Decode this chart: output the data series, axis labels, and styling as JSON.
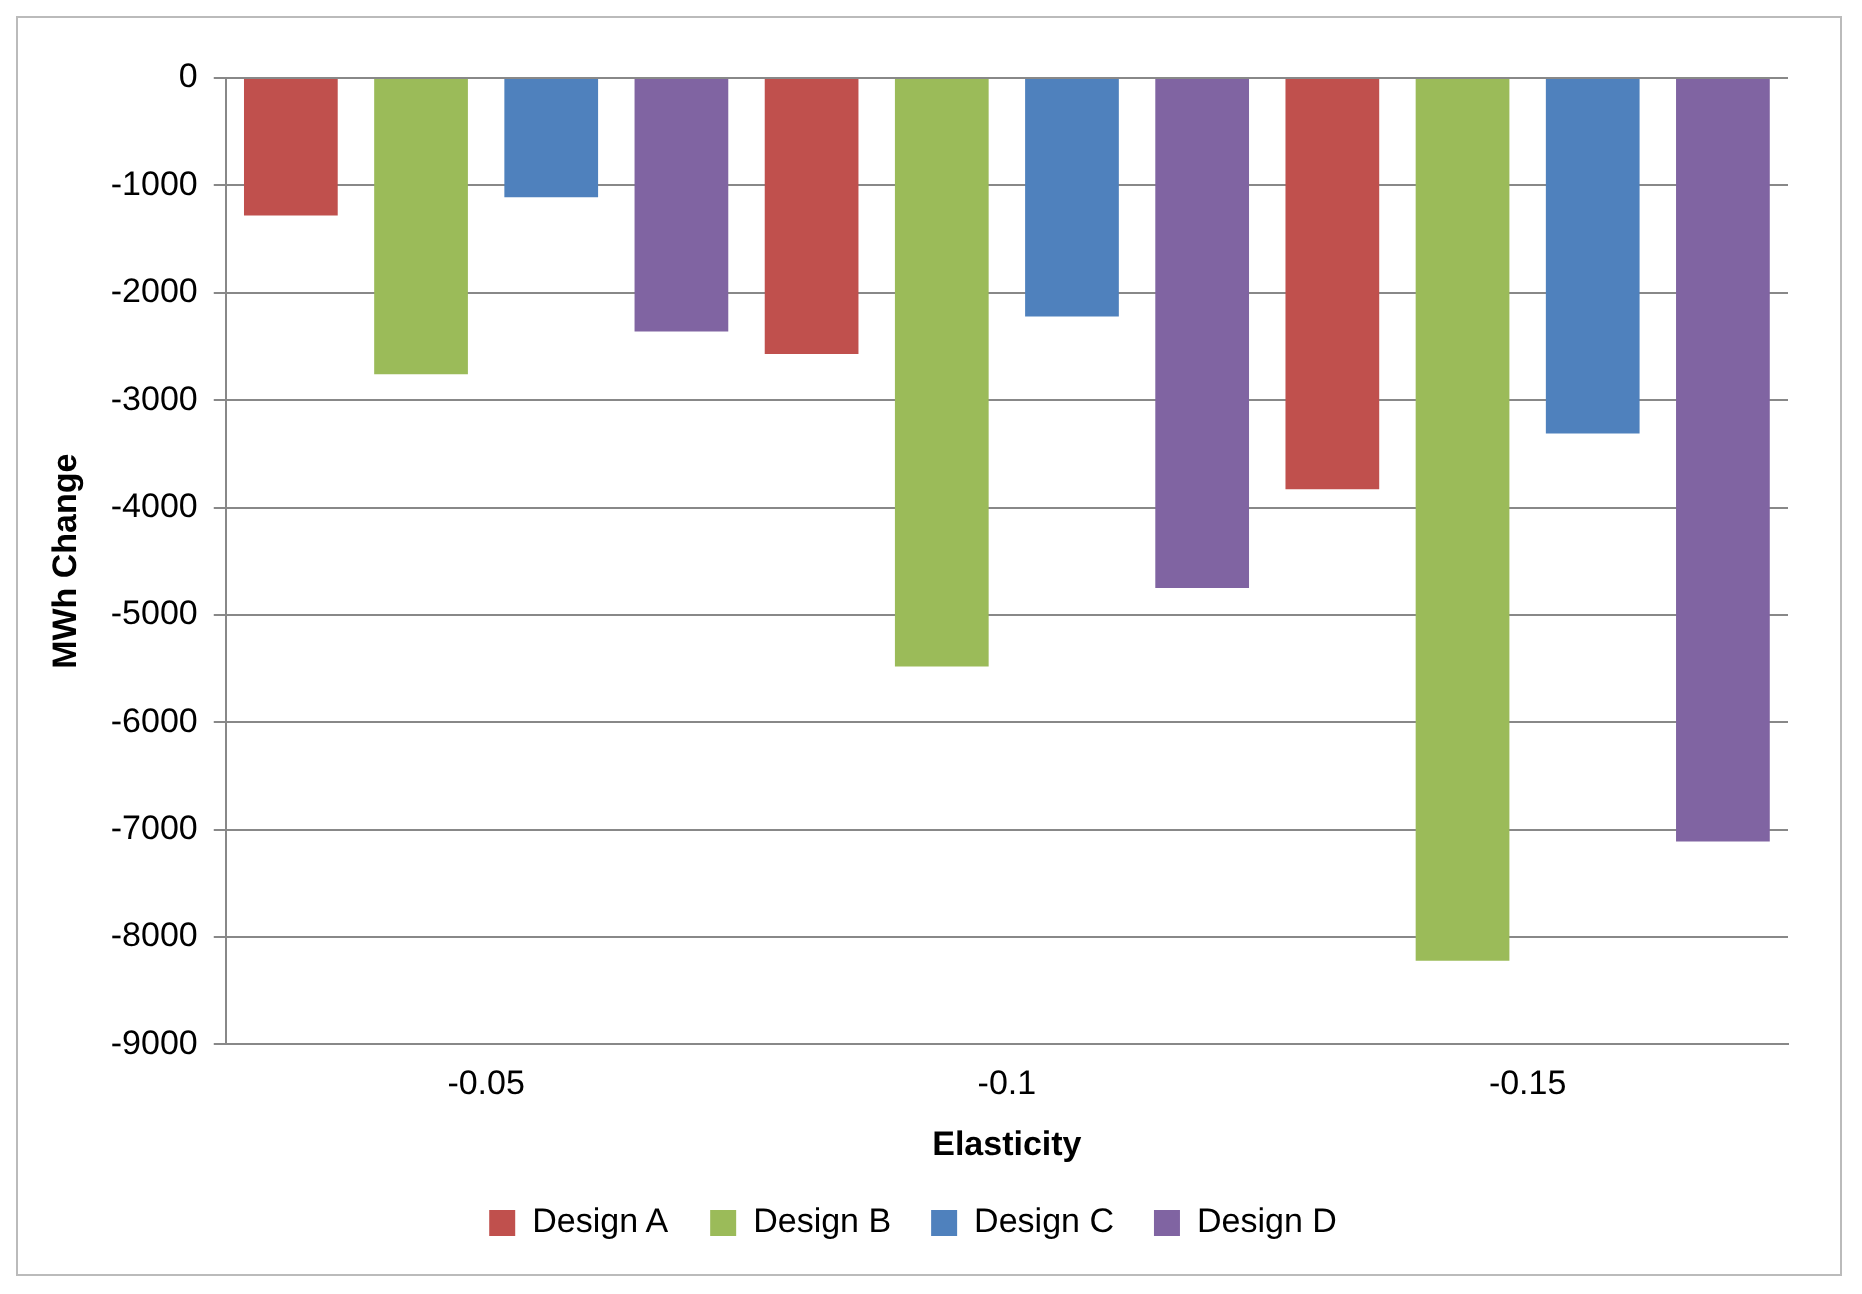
{
  "chart_data": {
    "type": "bar",
    "xlabel": "Elasticity",
    "ylabel": "MWh Change",
    "categories": [
      "-0.05",
      "-0.1",
      "-0.15"
    ],
    "series": [
      {
        "name": "Design A",
        "color": "#c0504d",
        "values": [
          -1280,
          -2570,
          -3830
        ]
      },
      {
        "name": "Design B",
        "color": "#9bbb59",
        "values": [
          -2760,
          -5480,
          -8220
        ]
      },
      {
        "name": "Design C",
        "color": "#4f81bd",
        "values": [
          -1110,
          -2220,
          -3310
        ]
      },
      {
        "name": "Design D",
        "color": "#8064a2",
        "values": [
          -2360,
          -4750,
          -7110
        ]
      }
    ],
    "ylim": [
      -9000,
      0
    ],
    "yticks": [
      0,
      -1000,
      -2000,
      -3000,
      -4000,
      -5000,
      -6000,
      -7000,
      -8000,
      -9000
    ],
    "grid": "y",
    "legend": "bottom"
  }
}
